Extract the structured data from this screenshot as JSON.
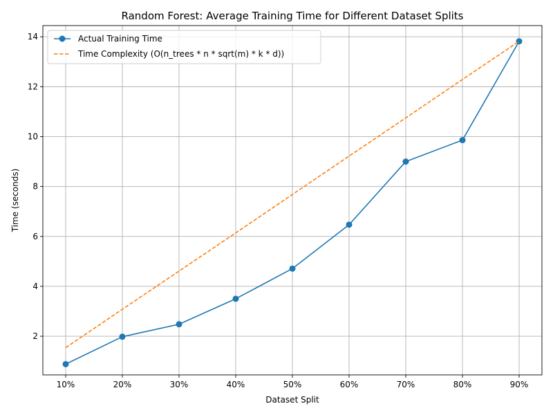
{
  "chart_data": {
    "type": "line",
    "title": "Random Forest: Average Training Time for Different Dataset Splits",
    "xlabel": "Dataset Split",
    "ylabel": "Time (seconds)",
    "categories": [
      "10%",
      "20%",
      "30%",
      "40%",
      "50%",
      "60%",
      "70%",
      "80%",
      "90%"
    ],
    "ylim": [
      0.45,
      14.45
    ],
    "yticks": [
      2,
      4,
      6,
      8,
      10,
      12,
      14
    ],
    "grid": true,
    "legend_position": "upper-left",
    "series": [
      {
        "name": "Actual Training Time",
        "values": [
          0.88,
          1.98,
          2.48,
          3.5,
          4.71,
          6.47,
          9.0,
          9.86,
          13.82
        ],
        "color": "#1f77b4",
        "style": "solid",
        "marker": "circle"
      },
      {
        "name": "Time Complexity (O(n_trees * n * sqrt(m) * k * d))",
        "values": [
          1.54,
          3.08,
          4.61,
          6.14,
          7.68,
          9.22,
          10.75,
          12.29,
          13.82
        ],
        "color": "#ff7f0e",
        "style": "dashed",
        "marker": "none"
      }
    ]
  }
}
